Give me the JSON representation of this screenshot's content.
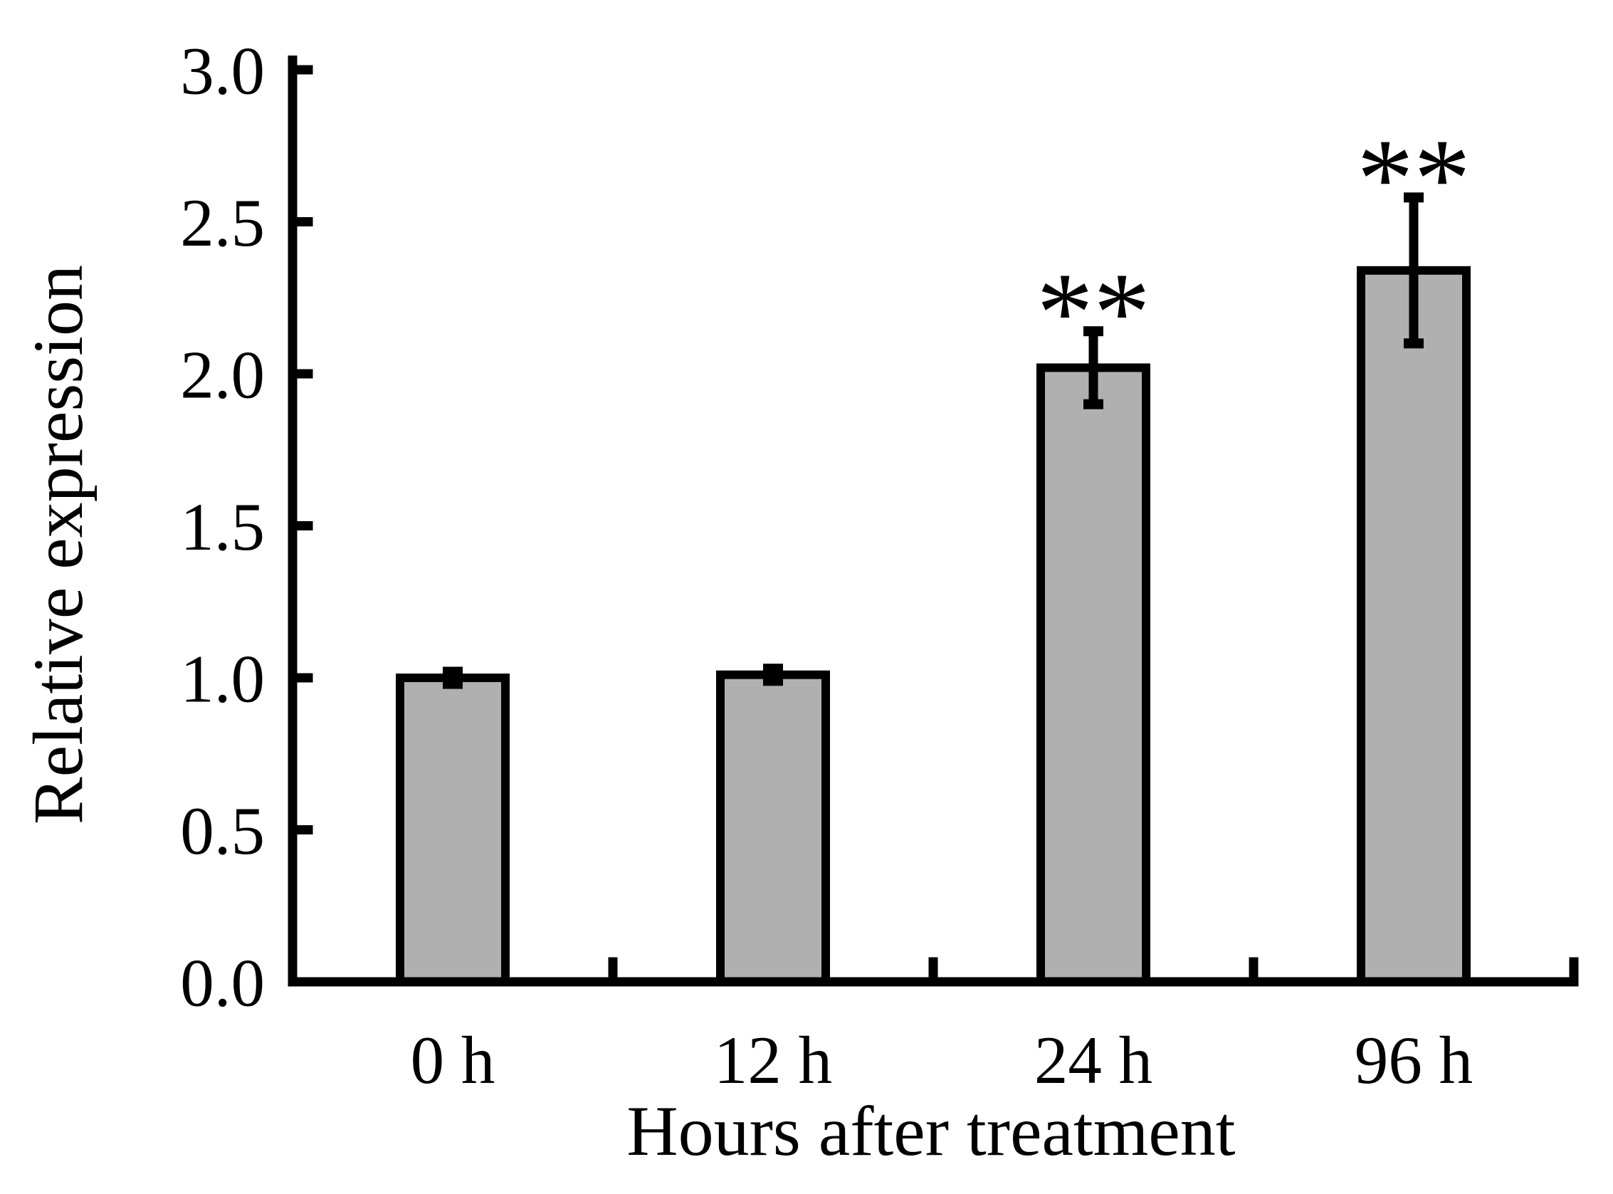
{
  "chart_data": {
    "type": "bar",
    "title": "",
    "xlabel": "Hours after treatment",
    "ylabel": "Relative expression",
    "categories": [
      "0 h",
      "12 h",
      "24 h",
      "96 h"
    ],
    "values": [
      1.0,
      1.01,
      2.02,
      2.34
    ],
    "error_bars": [
      0.02,
      0.02,
      0.12,
      0.24
    ],
    "significance": [
      "",
      "",
      "**",
      "**"
    ],
    "ylim": [
      0.0,
      3.0
    ],
    "ytick_step": 0.5,
    "ytick_labels": [
      "0.0",
      "0.5",
      "1.0",
      "1.5",
      "2.0",
      "2.5",
      "3.0"
    ],
    "grid": false,
    "legend_position": "none",
    "bar_fill_color": "#B0B0B0",
    "bar_border_color": "#000000",
    "axis_color": "#000000",
    "background_color": "#FFFFFF"
  }
}
